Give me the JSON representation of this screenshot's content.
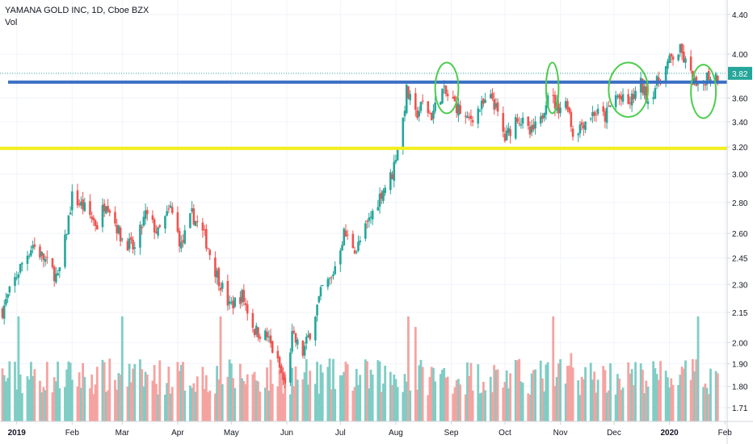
{
  "header": {
    "symbol_title": "YAMANA GOLD INC, 1D, Cboe BZX",
    "volume_label": "Vol"
  },
  "colors": {
    "up": "#26a69a",
    "down": "#ef5350",
    "up_volume": "#7fcdc5",
    "down_volume": "#f5a3a1",
    "resistance_line": "#3a6fc4",
    "support_line": "#f3ee1a",
    "highlight_ellipse": "#4ccd4c",
    "price_tag": "#26a69a"
  },
  "chart_data": {
    "type": "candlestick",
    "y_scale": "log",
    "y_ticks": [
      4.4,
      4.0,
      3.82,
      3.6,
      3.4,
      3.2,
      3.0,
      2.8,
      2.6,
      2.45,
      2.3,
      2.15,
      2.0,
      1.9,
      1.8,
      1.71
    ],
    "y_tick_labels": [
      "4.40",
      "4.00",
      "3.82",
      "3.60",
      "3.40",
      "3.20",
      "3.00",
      "2.80",
      "2.60",
      "2.45",
      "2.30",
      "2.15",
      "2.00",
      "1.90",
      "1.80",
      "1.71"
    ],
    "x_date_range": [
      "2018-12-24",
      "2020-01-31"
    ],
    "x_ticks": [
      {
        "date": "2019-01-01",
        "label": "2019",
        "bold": true
      },
      {
        "date": "2019-02-01",
        "label": "Feb"
      },
      {
        "date": "2019-03-01",
        "label": "Mar"
      },
      {
        "date": "2019-04-01",
        "label": "Apr"
      },
      {
        "date": "2019-05-01",
        "label": "May"
      },
      {
        "date": "2019-06-01",
        "label": "Jun"
      },
      {
        "date": "2019-07-01",
        "label": "Jul"
      },
      {
        "date": "2019-08-01",
        "label": "Aug"
      },
      {
        "date": "2019-09-01",
        "label": "Sep"
      },
      {
        "date": "2019-10-01",
        "label": "Oct"
      },
      {
        "date": "2019-11-01",
        "label": "Nov"
      },
      {
        "date": "2019-12-01",
        "label": "Dec"
      },
      {
        "date": "2020-01-01",
        "label": "2020",
        "bold": true
      },
      {
        "date": "2020-02-01",
        "label": "Feb"
      }
    ],
    "price_path": [
      [
        "2018-12-24",
        2.16
      ],
      [
        "2019-01-04",
        2.42
      ],
      [
        "2019-01-10",
        2.53
      ],
      [
        "2019-01-18",
        2.42
      ],
      [
        "2019-01-24",
        2.33
      ],
      [
        "2019-01-28",
        2.55
      ],
      [
        "2019-02-01",
        2.84
      ],
      [
        "2019-02-08",
        2.76
      ],
      [
        "2019-02-15",
        2.65
      ],
      [
        "2019-02-20",
        2.82
      ],
      [
        "2019-02-28",
        2.58
      ],
      [
        "2019-03-08",
        2.5
      ],
      [
        "2019-03-14",
        2.72
      ],
      [
        "2019-03-21",
        2.6
      ],
      [
        "2019-03-28",
        2.76
      ],
      [
        "2019-04-03",
        2.52
      ],
      [
        "2019-04-09",
        2.72
      ],
      [
        "2019-04-16",
        2.58
      ],
      [
        "2019-04-22",
        2.38
      ],
      [
        "2019-04-30",
        2.18
      ],
      [
        "2019-05-07",
        2.24
      ],
      [
        "2019-05-14",
        2.06
      ],
      [
        "2019-05-21",
        2.03
      ],
      [
        "2019-05-28",
        1.88
      ],
      [
        "2019-05-31",
        1.8
      ],
      [
        "2019-06-04",
        2.03
      ],
      [
        "2019-06-10",
        1.95
      ],
      [
        "2019-06-14",
        2.05
      ],
      [
        "2019-06-21",
        2.28
      ],
      [
        "2019-06-26",
        2.33
      ],
      [
        "2019-07-03",
        2.6
      ],
      [
        "2019-07-10",
        2.5
      ],
      [
        "2019-07-17",
        2.68
      ],
      [
        "2019-07-24",
        2.87
      ],
      [
        "2019-07-30",
        3.0
      ],
      [
        "2019-08-05",
        3.42
      ],
      [
        "2019-08-07",
        3.66
      ],
      [
        "2019-08-12",
        3.45
      ],
      [
        "2019-08-16",
        3.55
      ],
      [
        "2019-08-21",
        3.45
      ],
      [
        "2019-08-27",
        3.66
      ],
      [
        "2019-09-03",
        3.55
      ],
      [
        "2019-09-10",
        3.4
      ],
      [
        "2019-09-16",
        3.5
      ],
      [
        "2019-09-24",
        3.6
      ],
      [
        "2019-10-01",
        3.26
      ],
      [
        "2019-10-08",
        3.45
      ],
      [
        "2019-10-15",
        3.3
      ],
      [
        "2019-10-21",
        3.4
      ],
      [
        "2019-10-25",
        3.66
      ],
      [
        "2019-10-30",
        3.52
      ],
      [
        "2019-11-05",
        3.56
      ],
      [
        "2019-11-08",
        3.3
      ],
      [
        "2019-11-14",
        3.4
      ],
      [
        "2019-11-20",
        3.48
      ],
      [
        "2019-11-26",
        3.44
      ],
      [
        "2019-12-02",
        3.62
      ],
      [
        "2019-12-09",
        3.54
      ],
      [
        "2019-12-16",
        3.72
      ],
      [
        "2019-12-20",
        3.58
      ],
      [
        "2019-12-26",
        3.76
      ],
      [
        "2020-01-02",
        3.96
      ],
      [
        "2020-01-07",
        4.03
      ],
      [
        "2020-01-13",
        3.8
      ],
      [
        "2020-01-17",
        3.66
      ],
      [
        "2020-01-22",
        3.8
      ],
      [
        "2020-01-28",
        3.8
      ]
    ],
    "volume_spikes": [
      [
        "2019-01-02",
        1.0
      ],
      [
        "2019-03-01",
        1.0
      ],
      [
        "2019-04-25",
        1.0
      ],
      [
        "2019-08-08",
        1.0
      ],
      [
        "2019-08-12",
        0.9
      ],
      [
        "2019-10-28",
        1.0
      ],
      [
        "2019-11-07",
        0.65
      ],
      [
        "2020-01-17",
        1.0
      ]
    ],
    "resistance_level": 3.74,
    "support_level": 3.19,
    "last_price": 3.82,
    "highlight_regions": [
      {
        "start": "2019-08-23",
        "end": "2019-09-05",
        "low": 3.47,
        "high": 3.92
      },
      {
        "start": "2019-10-24",
        "end": "2019-10-31",
        "low": 3.47,
        "high": 3.92
      },
      {
        "start": "2019-11-28",
        "end": "2019-12-20",
        "low": 3.44,
        "high": 3.92
      },
      {
        "start": "2020-01-13",
        "end": "2020-01-27",
        "low": 3.43,
        "high": 3.9
      }
    ]
  }
}
